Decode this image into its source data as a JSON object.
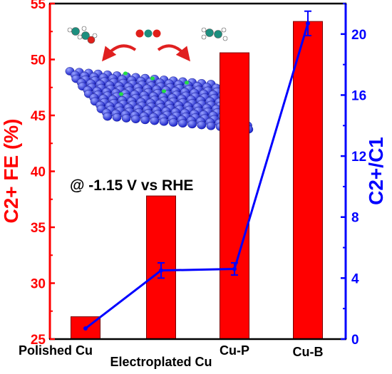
{
  "chart_data": {
    "type": "bar",
    "categories": [
      "Polished Cu",
      "Electroplated Cu",
      "Cu-P",
      "Cu-B"
    ],
    "series": [
      {
        "axis": "left",
        "type": "bar",
        "values": [
          27.0,
          37.8,
          50.6,
          53.4
        ],
        "color": "#ff0000"
      },
      {
        "axis": "right",
        "type": "line",
        "values": [
          0.7,
          4.5,
          4.6,
          20.7
        ],
        "errors": [
          0,
          0.5,
          0.4,
          0.8
        ],
        "color": "#0000ff"
      }
    ],
    "ylabel": "C2+ FE (%)",
    "y2label": "C2+/C1",
    "ylim": [
      25,
      55
    ],
    "y2lim": [
      0,
      22
    ],
    "yticks": [
      "25",
      "30",
      "35",
      "40",
      "45",
      "50",
      "55"
    ],
    "y2ticks": [
      "0",
      "4",
      "8",
      "12",
      "16",
      "20"
    ],
    "annotation": "@ -1.15 V vs RHE",
    "grid": false,
    "colors": {
      "left_axis": "#ff0000",
      "right_axis": "#0000ff",
      "bar": "#ff0000",
      "line": "#0000ff"
    }
  }
}
